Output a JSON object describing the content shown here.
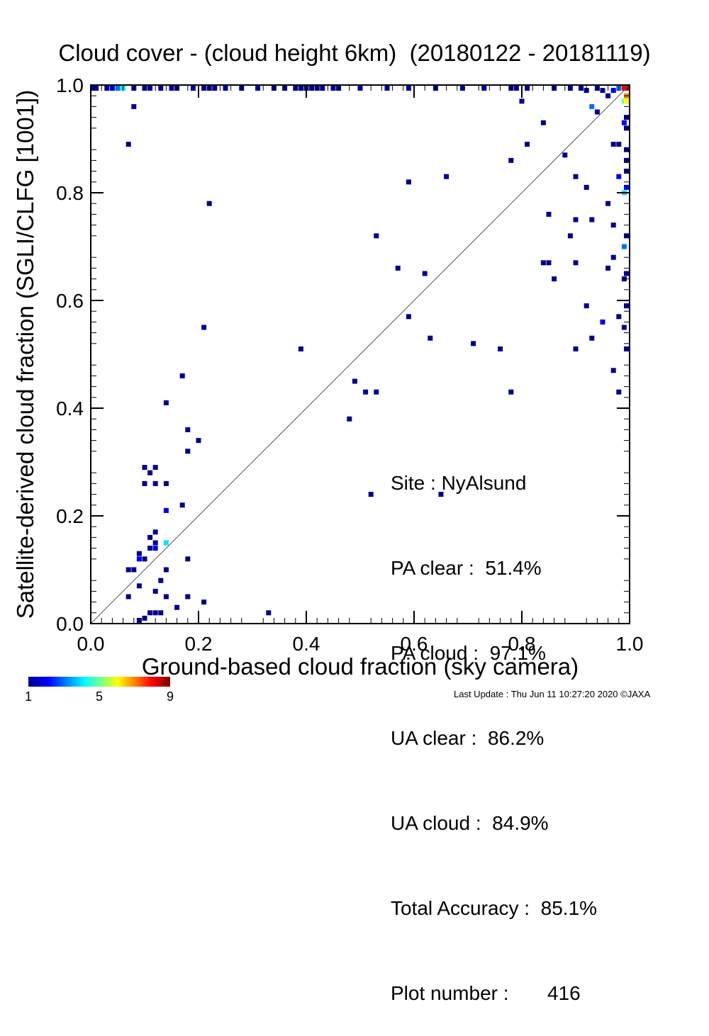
{
  "title": "Cloud cover - (cloud height 6km)  (20180122 - 20181119)",
  "xlabel": "Ground-based cloud fraction (sky camera)",
  "ylabel": "Satellite-derived cloud fraction (SGLI/CLFG [1001])",
  "stats": {
    "site": "Site : NyAlsund",
    "pa_clear": "PA clear :  51.4%",
    "pa_cloud": "PA cloud :  97.1%",
    "ua_clear": "UA clear :  86.2%",
    "ua_cloud": "UA cloud :  84.9%",
    "total_accuracy": "Total Accuracy :  85.1%",
    "plot_number": "Plot number :       416"
  },
  "colorbar": {
    "labels": [
      "1",
      "5",
      "9"
    ],
    "min": 1,
    "max": 9
  },
  "footer": "Last Update : Thu Jun 11 10:27:20 2020  ©JAXA",
  "chart_data": {
    "type": "heatmap",
    "xlim": [
      0.0,
      1.0
    ],
    "ylim": [
      0.0,
      1.0
    ],
    "xticks": [
      "0.0",
      "0.2",
      "0.4",
      "0.6",
      "0.8",
      "1.0"
    ],
    "yticks": [
      "0.0",
      "0.2",
      "0.4",
      "0.6",
      "0.8",
      "1.0"
    ],
    "diagonal_reference": true,
    "points": [
      {
        "x": 0.1,
        "y": 0.01,
        "c": 1
      },
      {
        "x": 0.11,
        "y": 0.02,
        "c": 1
      },
      {
        "x": 0.12,
        "y": 0.02,
        "c": 1
      },
      {
        "x": 0.13,
        "y": 0.02,
        "c": 1
      },
      {
        "x": 0.09,
        "y": 0.0,
        "c": 1
      },
      {
        "x": 0.16,
        "y": 0.03,
        "c": 1
      },
      {
        "x": 0.21,
        "y": 0.04,
        "c": 1
      },
      {
        "x": 0.07,
        "y": 0.05,
        "c": 1
      },
      {
        "x": 0.14,
        "y": 0.05,
        "c": 1
      },
      {
        "x": 0.18,
        "y": 0.05,
        "c": 1
      },
      {
        "x": 0.12,
        "y": 0.06,
        "c": 1
      },
      {
        "x": 0.09,
        "y": 0.07,
        "c": 1
      },
      {
        "x": 0.13,
        "y": 0.08,
        "c": 1
      },
      {
        "x": 0.08,
        "y": 0.1,
        "c": 1
      },
      {
        "x": 0.07,
        "y": 0.1,
        "c": 1
      },
      {
        "x": 0.14,
        "y": 0.1,
        "c": 1
      },
      {
        "x": 0.09,
        "y": 0.12,
        "c": 2
      },
      {
        "x": 0.1,
        "y": 0.12,
        "c": 1
      },
      {
        "x": 0.18,
        "y": 0.12,
        "c": 1
      },
      {
        "x": 0.09,
        "y": 0.13,
        "c": 1
      },
      {
        "x": 0.11,
        "y": 0.14,
        "c": 1
      },
      {
        "x": 0.12,
        "y": 0.14,
        "c": 2
      },
      {
        "x": 0.14,
        "y": 0.15,
        "c": 4
      },
      {
        "x": 0.12,
        "y": 0.15,
        "c": 1
      },
      {
        "x": 0.11,
        "y": 0.16,
        "c": 1
      },
      {
        "x": 0.12,
        "y": 0.17,
        "c": 1
      },
      {
        "x": 0.14,
        "y": 0.21,
        "c": 2
      },
      {
        "x": 0.17,
        "y": 0.22,
        "c": 1
      },
      {
        "x": 0.1,
        "y": 0.26,
        "c": 1
      },
      {
        "x": 0.12,
        "y": 0.26,
        "c": 1
      },
      {
        "x": 0.14,
        "y": 0.26,
        "c": 1
      },
      {
        "x": 0.11,
        "y": 0.28,
        "c": 1
      },
      {
        "x": 0.1,
        "y": 0.29,
        "c": 1
      },
      {
        "x": 0.12,
        "y": 0.29,
        "c": 1
      },
      {
        "x": 0.18,
        "y": 0.32,
        "c": 1
      },
      {
        "x": 0.2,
        "y": 0.34,
        "c": 1
      },
      {
        "x": 0.18,
        "y": 0.36,
        "c": 1
      },
      {
        "x": 0.14,
        "y": 0.41,
        "c": 1
      },
      {
        "x": 0.17,
        "y": 0.46,
        "c": 1
      },
      {
        "x": 0.21,
        "y": 0.55,
        "c": 1
      },
      {
        "x": 0.22,
        "y": 0.78,
        "c": 1
      },
      {
        "x": 0.07,
        "y": 0.89,
        "c": 1
      },
      {
        "x": 0.08,
        "y": 0.96,
        "c": 1
      },
      {
        "x": 0.33,
        "y": 0.02,
        "c": 1
      },
      {
        "x": 0.39,
        "y": 0.51,
        "c": 1
      },
      {
        "x": 0.48,
        "y": 0.38,
        "c": 1
      },
      {
        "x": 0.49,
        "y": 0.45,
        "c": 1
      },
      {
        "x": 0.51,
        "y": 0.43,
        "c": 1
      },
      {
        "x": 0.53,
        "y": 0.43,
        "c": 1
      },
      {
        "x": 0.52,
        "y": 0.24,
        "c": 1
      },
      {
        "x": 0.53,
        "y": 0.72,
        "c": 1
      },
      {
        "x": 0.57,
        "y": 0.66,
        "c": 1
      },
      {
        "x": 0.59,
        "y": 0.57,
        "c": 1
      },
      {
        "x": 0.59,
        "y": 0.82,
        "c": 1
      },
      {
        "x": 0.62,
        "y": 0.65,
        "c": 1
      },
      {
        "x": 0.63,
        "y": 0.53,
        "c": 1
      },
      {
        "x": 0.65,
        "y": 0.24,
        "c": 1
      },
      {
        "x": 0.66,
        "y": 0.83,
        "c": 1
      },
      {
        "x": 0.71,
        "y": 0.52,
        "c": 1
      },
      {
        "x": 0.76,
        "y": 0.51,
        "c": 1
      },
      {
        "x": 0.78,
        "y": 0.43,
        "c": 1
      },
      {
        "x": 0.78,
        "y": 0.86,
        "c": 1
      },
      {
        "x": 0.8,
        "y": 0.97,
        "c": 1
      },
      {
        "x": 0.81,
        "y": 0.89,
        "c": 1
      },
      {
        "x": 0.84,
        "y": 0.93,
        "c": 1
      },
      {
        "x": 0.84,
        "y": 0.67,
        "c": 1
      },
      {
        "x": 0.85,
        "y": 0.67,
        "c": 1
      },
      {
        "x": 0.85,
        "y": 0.76,
        "c": 1
      },
      {
        "x": 0.86,
        "y": 0.64,
        "c": 1
      },
      {
        "x": 0.88,
        "y": 0.87,
        "c": 1
      },
      {
        "x": 0.89,
        "y": 0.72,
        "c": 1
      },
      {
        "x": 0.9,
        "y": 0.75,
        "c": 1
      },
      {
        "x": 0.9,
        "y": 0.51,
        "c": 1
      },
      {
        "x": 0.9,
        "y": 0.67,
        "c": 1
      },
      {
        "x": 0.9,
        "y": 0.83,
        "c": 1
      },
      {
        "x": 0.92,
        "y": 0.81,
        "c": 1
      },
      {
        "x": 0.92,
        "y": 0.59,
        "c": 1
      },
      {
        "x": 0.93,
        "y": 0.53,
        "c": 1
      },
      {
        "x": 0.93,
        "y": 0.75,
        "c": 1
      },
      {
        "x": 0.93,
        "y": 0.96,
        "c": 3
      },
      {
        "x": 0.94,
        "y": 0.95,
        "c": 1
      },
      {
        "x": 0.95,
        "y": 0.56,
        "c": 2
      },
      {
        "x": 0.96,
        "y": 0.66,
        "c": 1
      },
      {
        "x": 0.96,
        "y": 0.78,
        "c": 1
      },
      {
        "x": 0.97,
        "y": 0.47,
        "c": 1
      },
      {
        "x": 0.97,
        "y": 0.68,
        "c": 1
      },
      {
        "x": 0.97,
        "y": 0.74,
        "c": 1
      },
      {
        "x": 0.97,
        "y": 0.89,
        "c": 1
      },
      {
        "x": 0.98,
        "y": 0.43,
        "c": 1
      },
      {
        "x": 0.98,
        "y": 0.57,
        "c": 1
      },
      {
        "x": 0.98,
        "y": 0.89,
        "c": 1
      },
      {
        "x": 0.98,
        "y": 0.83,
        "c": 2
      },
      {
        "x": 0.99,
        "y": 0.55,
        "c": 1
      },
      {
        "x": 0.99,
        "y": 0.64,
        "c": 1
      },
      {
        "x": 0.99,
        "y": 0.7,
        "c": 3
      },
      {
        "x": 0.99,
        "y": 0.8,
        "c": 4
      },
      {
        "x": 0.99,
        "y": 0.93,
        "c": 2
      },
      {
        "x": 0.99,
        "y": 0.97,
        "c": 5
      },
      {
        "x": 1.0,
        "y": 0.51,
        "c": 1
      },
      {
        "x": 1.0,
        "y": 0.59,
        "c": 1
      },
      {
        "x": 1.0,
        "y": 0.65,
        "c": 1
      },
      {
        "x": 1.0,
        "y": 0.72,
        "c": 1
      },
      {
        "x": 1.0,
        "y": 0.81,
        "c": 2
      },
      {
        "x": 1.0,
        "y": 0.84,
        "c": 1
      },
      {
        "x": 1.0,
        "y": 0.86,
        "c": 1
      },
      {
        "x": 1.0,
        "y": 0.88,
        "c": 1
      },
      {
        "x": 1.0,
        "y": 0.92,
        "c": 1
      },
      {
        "x": 1.0,
        "y": 0.94,
        "c": 1
      },
      {
        "x": 1.0,
        "y": 0.97,
        "c": 6
      },
      {
        "x": 1.0,
        "y": 0.98,
        "c": 7
      },
      {
        "x": 1.0,
        "y": 1.0,
        "c": 9
      },
      {
        "x": 0.99,
        "y": 1.0,
        "c": 8
      },
      {
        "x": 0.98,
        "y": 1.0,
        "c": 3
      },
      {
        "x": 0.97,
        "y": 0.99,
        "c": 2
      },
      {
        "x": 0.96,
        "y": 0.98,
        "c": 1
      },
      {
        "x": 0.95,
        "y": 0.99,
        "c": 1
      },
      {
        "x": 0.94,
        "y": 1.0,
        "c": 1
      },
      {
        "x": 0.92,
        "y": 0.99,
        "c": 1
      },
      {
        "x": 0.91,
        "y": 1.0,
        "c": 1
      },
      {
        "x": 0.89,
        "y": 1.0,
        "c": 1
      },
      {
        "x": 0.86,
        "y": 1.0,
        "c": 1
      },
      {
        "x": 0.81,
        "y": 1.0,
        "c": 1
      },
      {
        "x": 0.79,
        "y": 1.0,
        "c": 1
      },
      {
        "x": 0.78,
        "y": 1.0,
        "c": 1
      },
      {
        "x": 0.73,
        "y": 1.0,
        "c": 1
      },
      {
        "x": 0.69,
        "y": 1.0,
        "c": 1
      },
      {
        "x": 0.64,
        "y": 1.0,
        "c": 1
      },
      {
        "x": 0.59,
        "y": 1.0,
        "c": 1
      },
      {
        "x": 0.55,
        "y": 1.0,
        "c": 1
      },
      {
        "x": 0.5,
        "y": 1.0,
        "c": 1
      },
      {
        "x": 0.46,
        "y": 1.0,
        "c": 1
      },
      {
        "x": 0.45,
        "y": 1.0,
        "c": 1
      },
      {
        "x": 0.43,
        "y": 1.0,
        "c": 1
      },
      {
        "x": 0.42,
        "y": 1.0,
        "c": 1
      },
      {
        "x": 0.41,
        "y": 1.0,
        "c": 1
      },
      {
        "x": 0.4,
        "y": 1.0,
        "c": 1
      },
      {
        "x": 0.39,
        "y": 1.0,
        "c": 1
      },
      {
        "x": 0.38,
        "y": 1.0,
        "c": 1
      },
      {
        "x": 0.36,
        "y": 1.0,
        "c": 1
      },
      {
        "x": 0.34,
        "y": 1.0,
        "c": 1
      },
      {
        "x": 0.31,
        "y": 1.0,
        "c": 1
      },
      {
        "x": 0.28,
        "y": 1.0,
        "c": 1
      },
      {
        "x": 0.25,
        "y": 1.0,
        "c": 1
      },
      {
        "x": 0.23,
        "y": 1.0,
        "c": 1
      },
      {
        "x": 0.22,
        "y": 1.0,
        "c": 1
      },
      {
        "x": 0.21,
        "y": 1.0,
        "c": 1
      },
      {
        "x": 0.19,
        "y": 1.0,
        "c": 1
      },
      {
        "x": 0.16,
        "y": 1.0,
        "c": 1
      },
      {
        "x": 0.15,
        "y": 1.0,
        "c": 1
      },
      {
        "x": 0.13,
        "y": 1.0,
        "c": 1
      },
      {
        "x": 0.11,
        "y": 1.0,
        "c": 1
      },
      {
        "x": 0.1,
        "y": 1.0,
        "c": 1
      },
      {
        "x": 0.08,
        "y": 1.0,
        "c": 1
      },
      {
        "x": 0.06,
        "y": 1.0,
        "c": 4
      },
      {
        "x": 0.05,
        "y": 1.0,
        "c": 3
      },
      {
        "x": 0.04,
        "y": 1.0,
        "c": 2
      },
      {
        "x": 0.03,
        "y": 1.0,
        "c": 1
      },
      {
        "x": 0.01,
        "y": 1.0,
        "c": 1
      },
      {
        "x": 0.0,
        "y": 1.0,
        "c": 1
      }
    ]
  }
}
